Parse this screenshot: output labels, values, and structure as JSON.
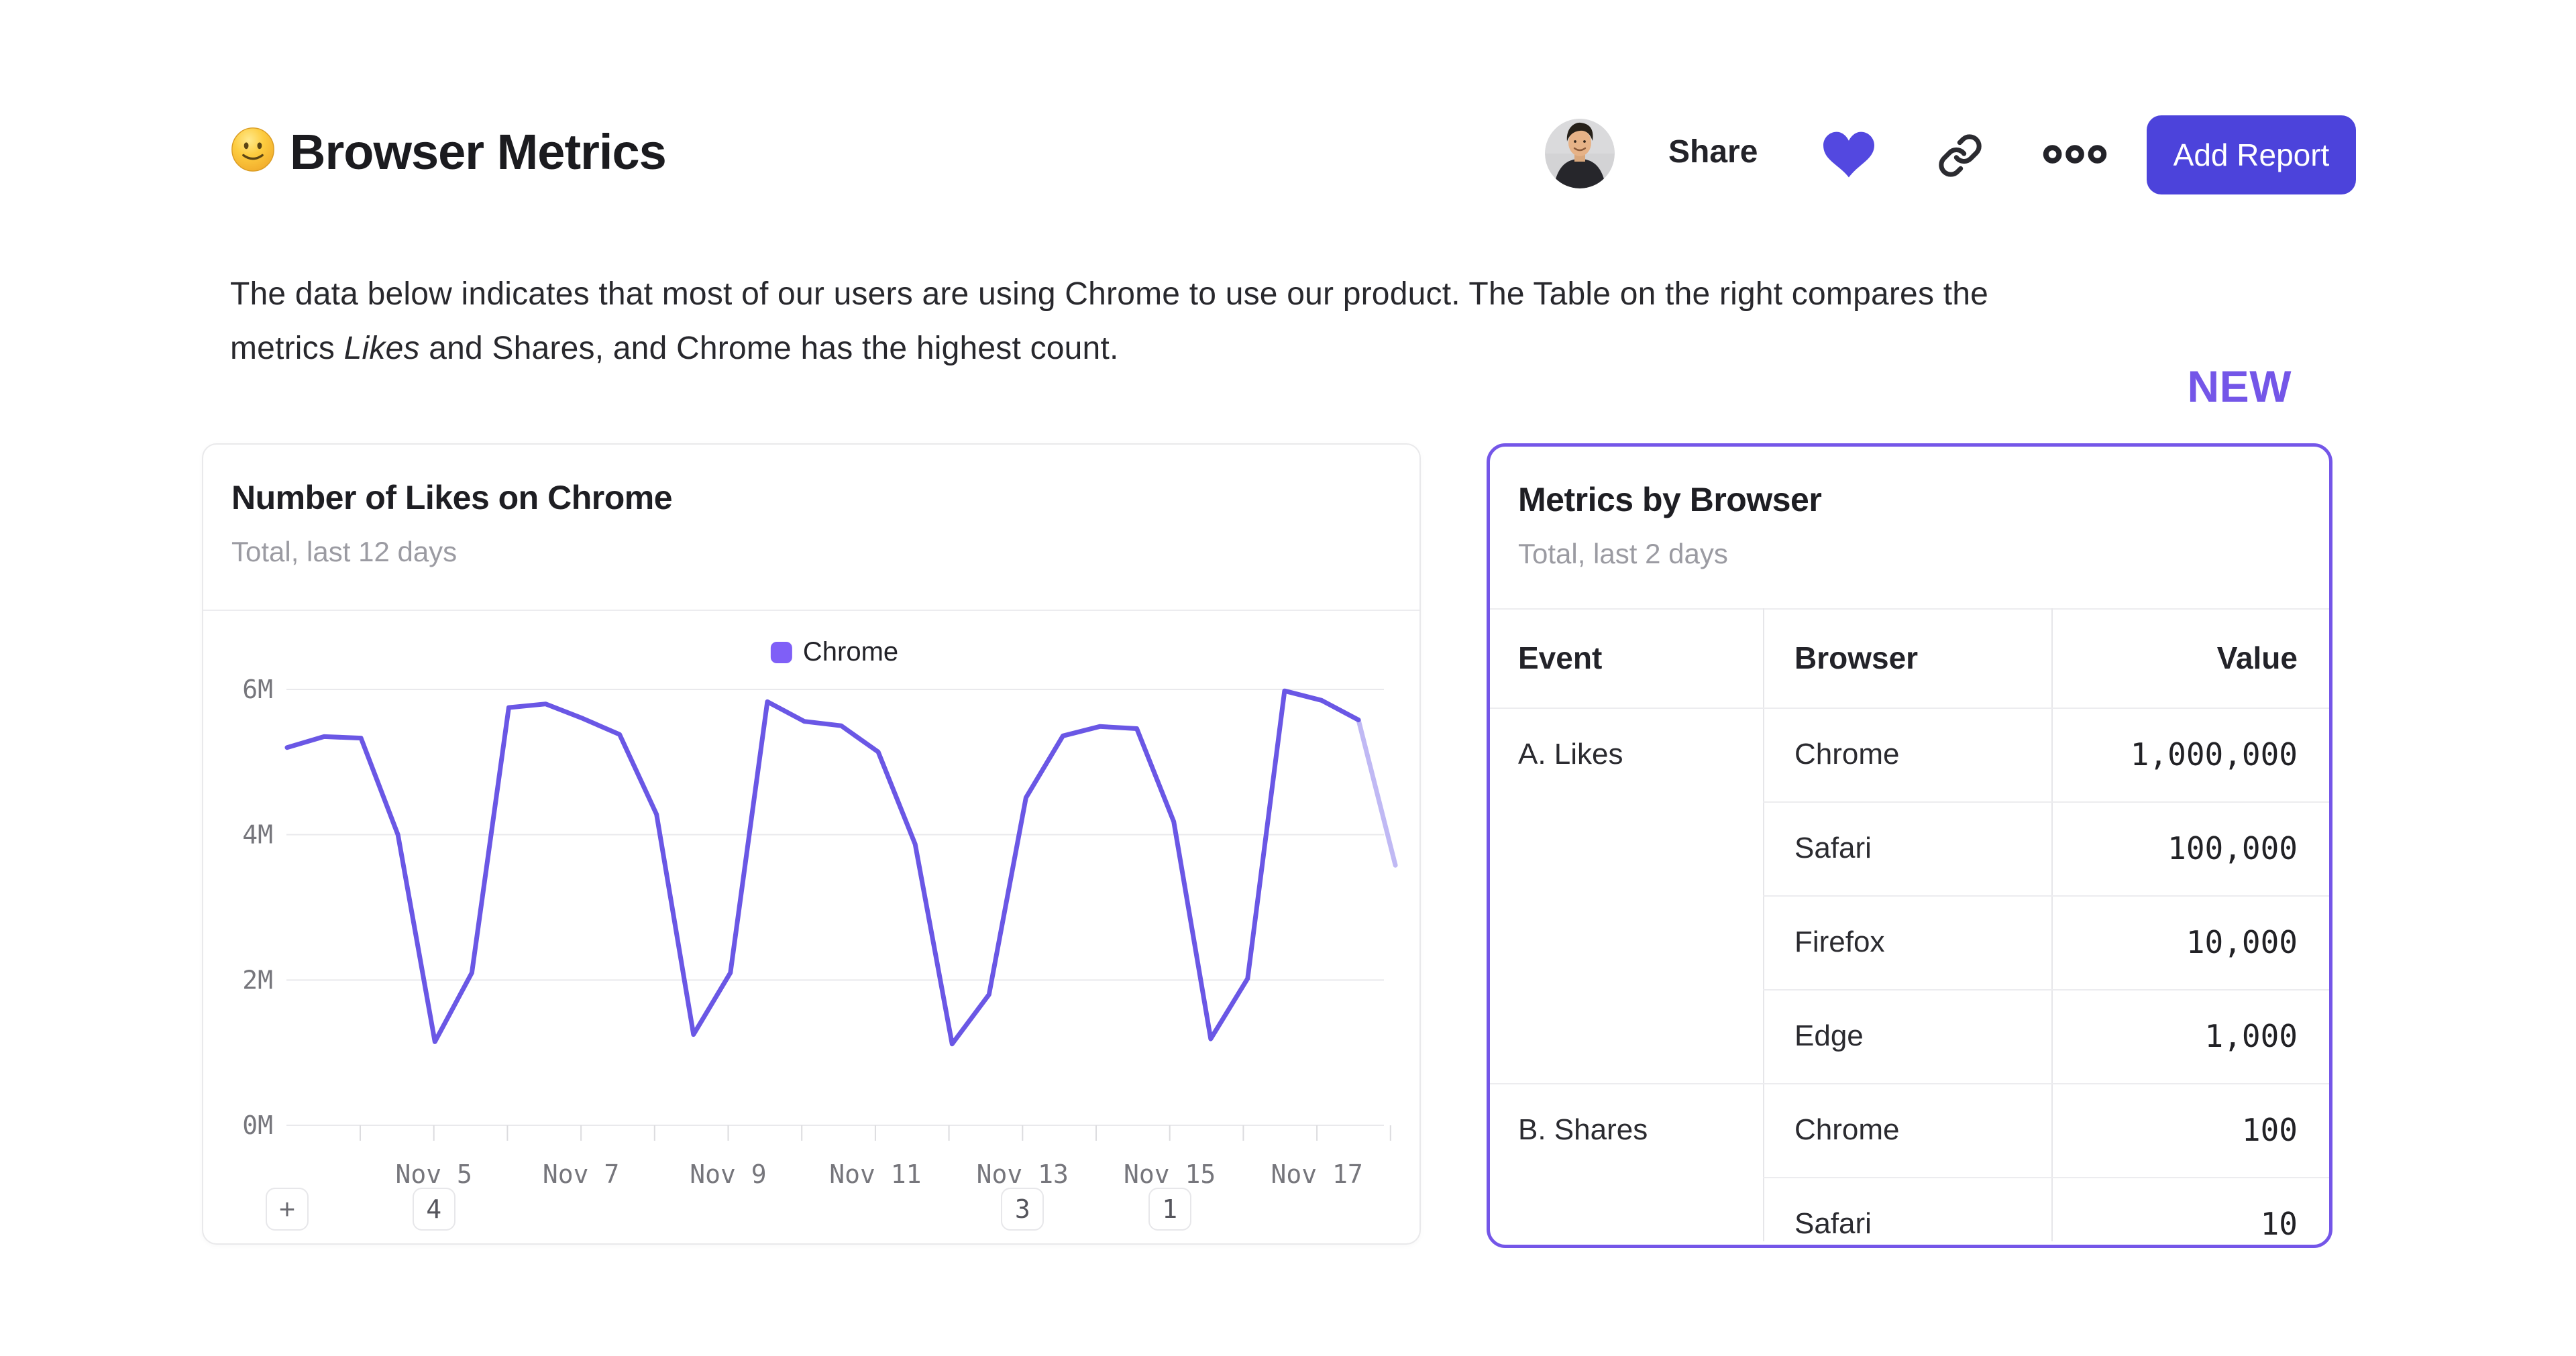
{
  "header": {
    "title": "Browser Metrics",
    "emoji": "slightly-smiling-face",
    "share_label": "Share",
    "add_report_label": "Add Report"
  },
  "description": {
    "line1": "The data below indicates that most of our users are using Chrome to use our product. The Table on the right compares the",
    "line2_pre": "metrics ",
    "line2_italic": "Likes",
    "line2_post": " and Shares, and Chrome has the highest count."
  },
  "new_badge": "NEW",
  "likes_card": {
    "title": "Number of Likes on Chrome",
    "subtitle": "Total, last 12 days",
    "legend_label": "Chrome",
    "add_annotation_label": "+",
    "annotation_chips": [
      {
        "label": "4",
        "tick_day": "Nov 5"
      },
      {
        "label": "3",
        "tick_day": "Nov 13"
      },
      {
        "label": "1",
        "tick_day": "Nov 15"
      }
    ]
  },
  "chart_data": {
    "type": "line",
    "title": "Number of Likes on Chrome",
    "subtitle": "Total, last 12 days",
    "series": [
      {
        "name": "Chrome",
        "color": "#6A57E5",
        "values_millions": [
          5.2,
          5.35,
          5.33,
          4.0,
          1.15,
          2.1,
          5.75,
          5.8,
          5.6,
          5.38,
          4.28,
          1.25,
          2.1,
          5.83,
          5.56,
          5.5,
          5.14,
          3.87,
          1.12,
          1.8,
          4.51,
          5.36,
          5.49,
          5.46,
          4.18,
          1.19,
          2.02,
          5.98,
          5.85,
          5.58,
          3.58
        ]
      }
    ],
    "x_start": "Nov 3",
    "x_end": "Nov 18",
    "points_per_day": 2,
    "x_tick_labels": [
      "Nov 5",
      "Nov 7",
      "Nov 9",
      "Nov 11",
      "Nov 13",
      "Nov 15",
      "Nov 17"
    ],
    "y_tick_labels": [
      "6M",
      "4M",
      "2M",
      "0M"
    ],
    "ylim_millions": [
      0,
      6
    ],
    "grid": true,
    "legend_position": "top-center",
    "incomplete_tail_segment": true
  },
  "metrics_card": {
    "title": "Metrics by Browser",
    "subtitle": "Total, last 2 days",
    "columns": [
      "Event",
      "Browser",
      "Value"
    ],
    "groups": [
      {
        "event": "A. Likes",
        "rows": [
          {
            "browser": "Chrome",
            "value": "1,000,000"
          },
          {
            "browser": "Safari",
            "value": "100,000"
          },
          {
            "browser": "Firefox",
            "value": "10,000"
          },
          {
            "browser": "Edge",
            "value": "1,000"
          }
        ]
      },
      {
        "event": "B. Shares",
        "rows": [
          {
            "browser": "Chrome",
            "value": "100"
          },
          {
            "browser": "Safari",
            "value": "10"
          }
        ]
      }
    ]
  },
  "colors": {
    "accent_purple": "#7456E8",
    "button_indigo": "#4C43DB",
    "heart": "#5348E0",
    "legend_swatch": "#7F5FF7",
    "line": "#6A57E5",
    "faded_line_opacity": "0.42",
    "grid_line": "#e9e9ec",
    "subtitle_gray": "#9b9ba2"
  }
}
